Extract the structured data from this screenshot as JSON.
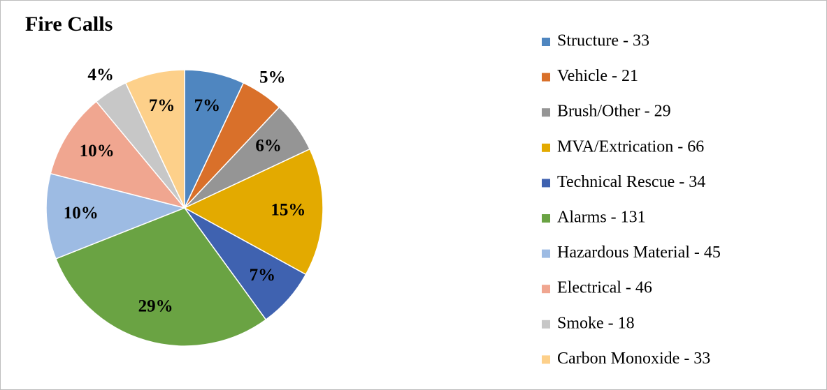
{
  "chart_data": {
    "type": "pie",
    "title": "Fire Calls",
    "categories": [
      "Structure - 33",
      "Vehicle - 21",
      "Brush/Other - 29",
      "MVA/Extrication - 66",
      "Technical Rescue - 34",
      "Alarms - 131",
      "Hazardous Material - 45",
      "Electrical - 46",
      "Smoke - 18",
      "Carbon Monoxide - 33"
    ],
    "values": [
      7,
      5,
      6,
      15,
      7,
      29,
      10,
      10,
      4,
      7
    ],
    "value_labels": [
      "7%",
      "5%",
      "6%",
      "15%",
      "7%",
      "29%",
      "10%",
      "10%",
      "4%",
      "7%"
    ],
    "colors": [
      "#4f86c0",
      "#d9702a",
      "#959595",
      "#e3aa00",
      "#3f62b0",
      "#6aa343",
      "#9dbbe3",
      "#f0a690",
      "#c7c7c7",
      "#fdd08a"
    ],
    "legend": "right"
  }
}
